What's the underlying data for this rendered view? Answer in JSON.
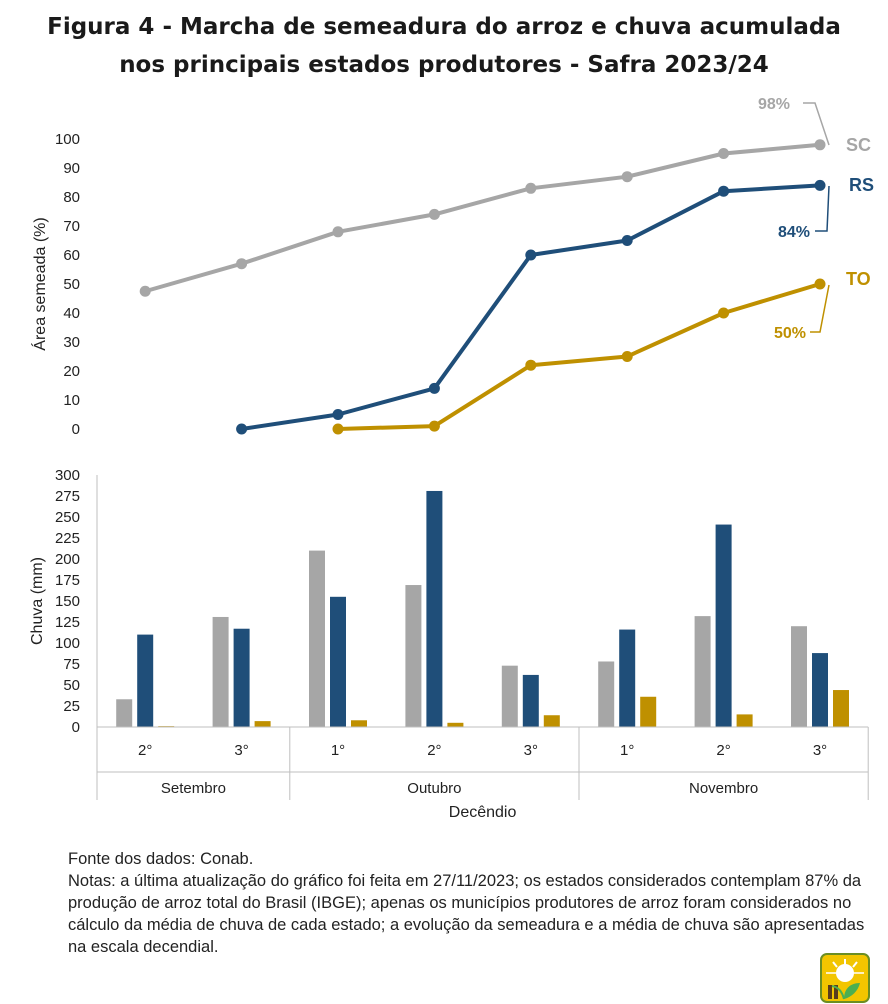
{
  "title": {
    "line1": "Figura 4 - Marcha de semeadura do arroz e chuva acumulada",
    "line2": "nos principais estados produtores - Safra 2023/24"
  },
  "colors": {
    "SC": "#a6a6a6",
    "RS": "#1f4e79",
    "TO": "#bf9000",
    "axis": "#bfbfbf"
  },
  "chart_data": [
    {
      "type": "line",
      "ylabel": "Área semeada (%)",
      "ylim": [
        0,
        100
      ],
      "yticks": [
        "0",
        "10",
        "20",
        "30",
        "40",
        "50",
        "60",
        "70",
        "80",
        "90",
        "100"
      ],
      "categories": [
        "Setembro 2°",
        "Setembro 3°",
        "Outubro 1°",
        "Outubro 2°",
        "Outubro 3°",
        "Novembro 1°",
        "Novembro 2°",
        "Novembro 3°"
      ],
      "series": [
        {
          "name": "SC",
          "values": [
            47.5,
            57,
            68,
            74,
            83,
            87,
            95,
            98
          ],
          "end_label": "98%"
        },
        {
          "name": "RS",
          "values": [
            null,
            0,
            5,
            14,
            60,
            65,
            82,
            84
          ],
          "end_label": "84%"
        },
        {
          "name": "TO",
          "values": [
            null,
            null,
            0,
            1,
            22,
            25,
            40,
            50
          ],
          "end_label": "50%"
        }
      ]
    },
    {
      "type": "bar",
      "ylabel": "Chuva (mm)",
      "xlabel": "Decêndio",
      "ylim": [
        0,
        300
      ],
      "yticks": [
        "0",
        "25",
        "50",
        "75",
        "100",
        "125",
        "150",
        "175",
        "200",
        "225",
        "250",
        "275",
        "300"
      ],
      "categories": [
        "2°",
        "3°",
        "1°",
        "2°",
        "3°",
        "1°",
        "2°",
        "3°"
      ],
      "groups": [
        {
          "label": "Setembro",
          "count": 2
        },
        {
          "label": "Outubro",
          "count": 3
        },
        {
          "label": "Novembro",
          "count": 3
        }
      ],
      "series": [
        {
          "name": "SC",
          "values": [
            33,
            131,
            210,
            169,
            73,
            78,
            132,
            120
          ]
        },
        {
          "name": "RS",
          "values": [
            110,
            117,
            155,
            281,
            62,
            116,
            241,
            88
          ]
        },
        {
          "name": "TO",
          "values": [
            1,
            7,
            8,
            5,
            14,
            36,
            15,
            44
          ]
        }
      ]
    }
  ],
  "notes": {
    "source": "Fonte dos dados: Conab.",
    "text": "Notas: a última atualização do gráfico foi feita em 27/11/2023; os estados considerados contemplam 87% da produção de arroz total do Brasil (IBGE); apenas os municípios produtores de arroz foram considerados no cálculo da média de chuva de cada estado;  a evolução da semeadura e a média de chuva são apresentadas na escala decendial."
  }
}
